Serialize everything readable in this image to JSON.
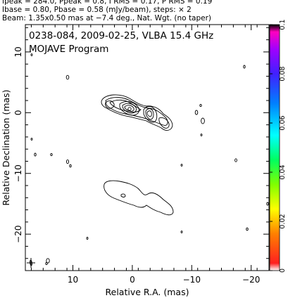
{
  "header": {
    "line1": "Ipeak = 284.0, Ppeak = 0.8, I RMS = 0.17, P RMS = 0.19",
    "line2": "Ibase = 0.80, Pbase = 0.58 (mJy/beam), steps: × 2",
    "line3": "Beam: 1.35x0.50 mas at −7.4 deg., Nat. Wgt. (no taper)"
  },
  "chart_data": {
    "type": "contour",
    "title": "0238-084, 2009-02-25, VLBA 15.4 GHz",
    "subtitle": "MOJAVE Program",
    "xlabel": "Relative R.A. (mas)",
    "ylabel": "Relative Declination (mas)",
    "xlim": [
      18,
      -23
    ],
    "ylim": [
      -26,
      14.5
    ],
    "xticks": [
      10,
      0,
      -10,
      -20
    ],
    "yticks": [
      10,
      0,
      -10,
      -20
    ],
    "colorbar": {
      "min": 0,
      "max": 0.1,
      "ticks": [
        0,
        0.02,
        0.04,
        0.06,
        0.08,
        0.1
      ],
      "tick_labels": [
        "0",
        "0.02",
        "0.04",
        "0.06",
        "0.08",
        "0.1"
      ]
    },
    "features": {
      "upper_jet_peak": [
        0.8,
        0.6
      ],
      "lower_counterjet": [
        -3,
        -14
      ],
      "source_name": "0238-084",
      "epoch": "2009-02-25",
      "frequency_ghz": 15.4
    }
  }
}
